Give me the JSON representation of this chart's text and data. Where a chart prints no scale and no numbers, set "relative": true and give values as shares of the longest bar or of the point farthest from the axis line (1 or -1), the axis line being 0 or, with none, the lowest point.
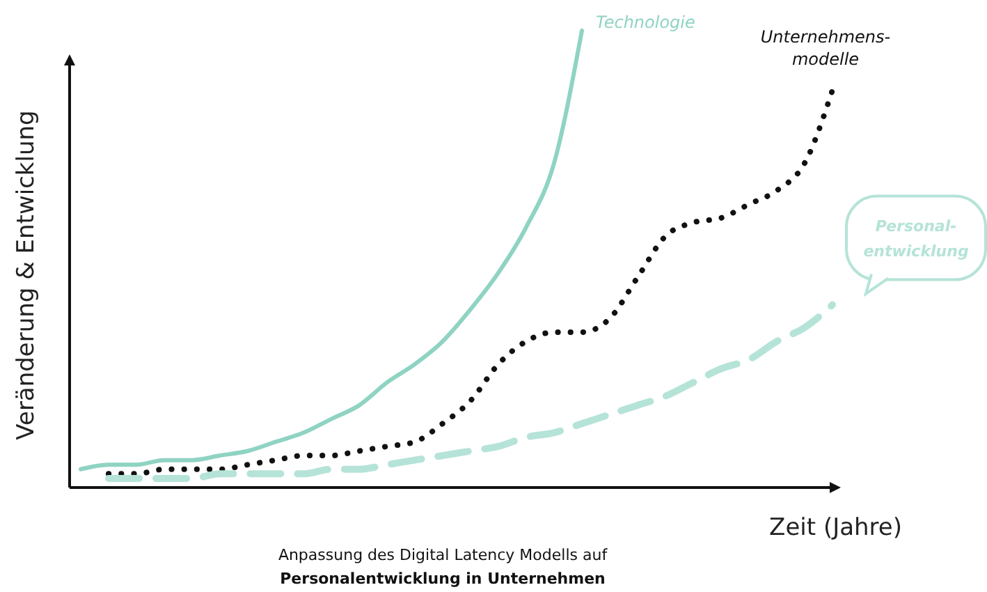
{
  "chart_data": {
    "type": "line",
    "relative": true,
    "xlabel": "Zeit (Jahre)",
    "ylabel": "Veränderung & Entwicklung",
    "annotations": [
      "Anpassung des Digital Latency Modells auf",
      "Personalentwicklung in Unternehmen"
    ],
    "categories": [
      null,
      null,
      null,
      null,
      null,
      null,
      null,
      null,
      null,
      null,
      null,
      null,
      null,
      null,
      null,
      null,
      null,
      null,
      null,
      null,
      null,
      null,
      null,
      null,
      null,
      null,
      null,
      null
    ],
    "series": [
      {
        "name": "Technologie",
        "color": "#8fd3c3",
        "line_style": "solid",
        "values": [
          0.04,
          0.05,
          0.05,
          0.06,
          0.06,
          0.07,
          0.08,
          0.1,
          0.12,
          0.15,
          0.18,
          0.23,
          0.27,
          0.32,
          0.39,
          0.47,
          0.57,
          0.71,
          1.0,
          null,
          null,
          null,
          null,
          null,
          null,
          null,
          null,
          null
        ]
      },
      {
        "name": "Unternehmens-modelle",
        "color": "#111111",
        "line_style": "dotted",
        "values": [
          null,
          0.03,
          0.03,
          0.04,
          0.04,
          0.04,
          0.05,
          0.06,
          0.07,
          0.07,
          0.08,
          0.09,
          0.1,
          0.14,
          0.19,
          0.27,
          0.32,
          0.34,
          0.34,
          0.37,
          0.46,
          0.55,
          0.58,
          0.59,
          0.62,
          0.65,
          0.71,
          0.87
        ]
      },
      {
        "name": "Personal-entwicklung",
        "color": "#b5e3d8",
        "line_style": "dashed",
        "values": [
          null,
          0.02,
          0.02,
          0.02,
          0.02,
          0.03,
          0.03,
          0.03,
          0.03,
          0.04,
          0.04,
          0.05,
          0.06,
          0.07,
          0.08,
          0.09,
          0.11,
          0.12,
          0.14,
          0.16,
          0.18,
          0.2,
          0.23,
          0.26,
          0.28,
          0.32,
          0.35,
          0.4
        ]
      }
    ]
  }
}
